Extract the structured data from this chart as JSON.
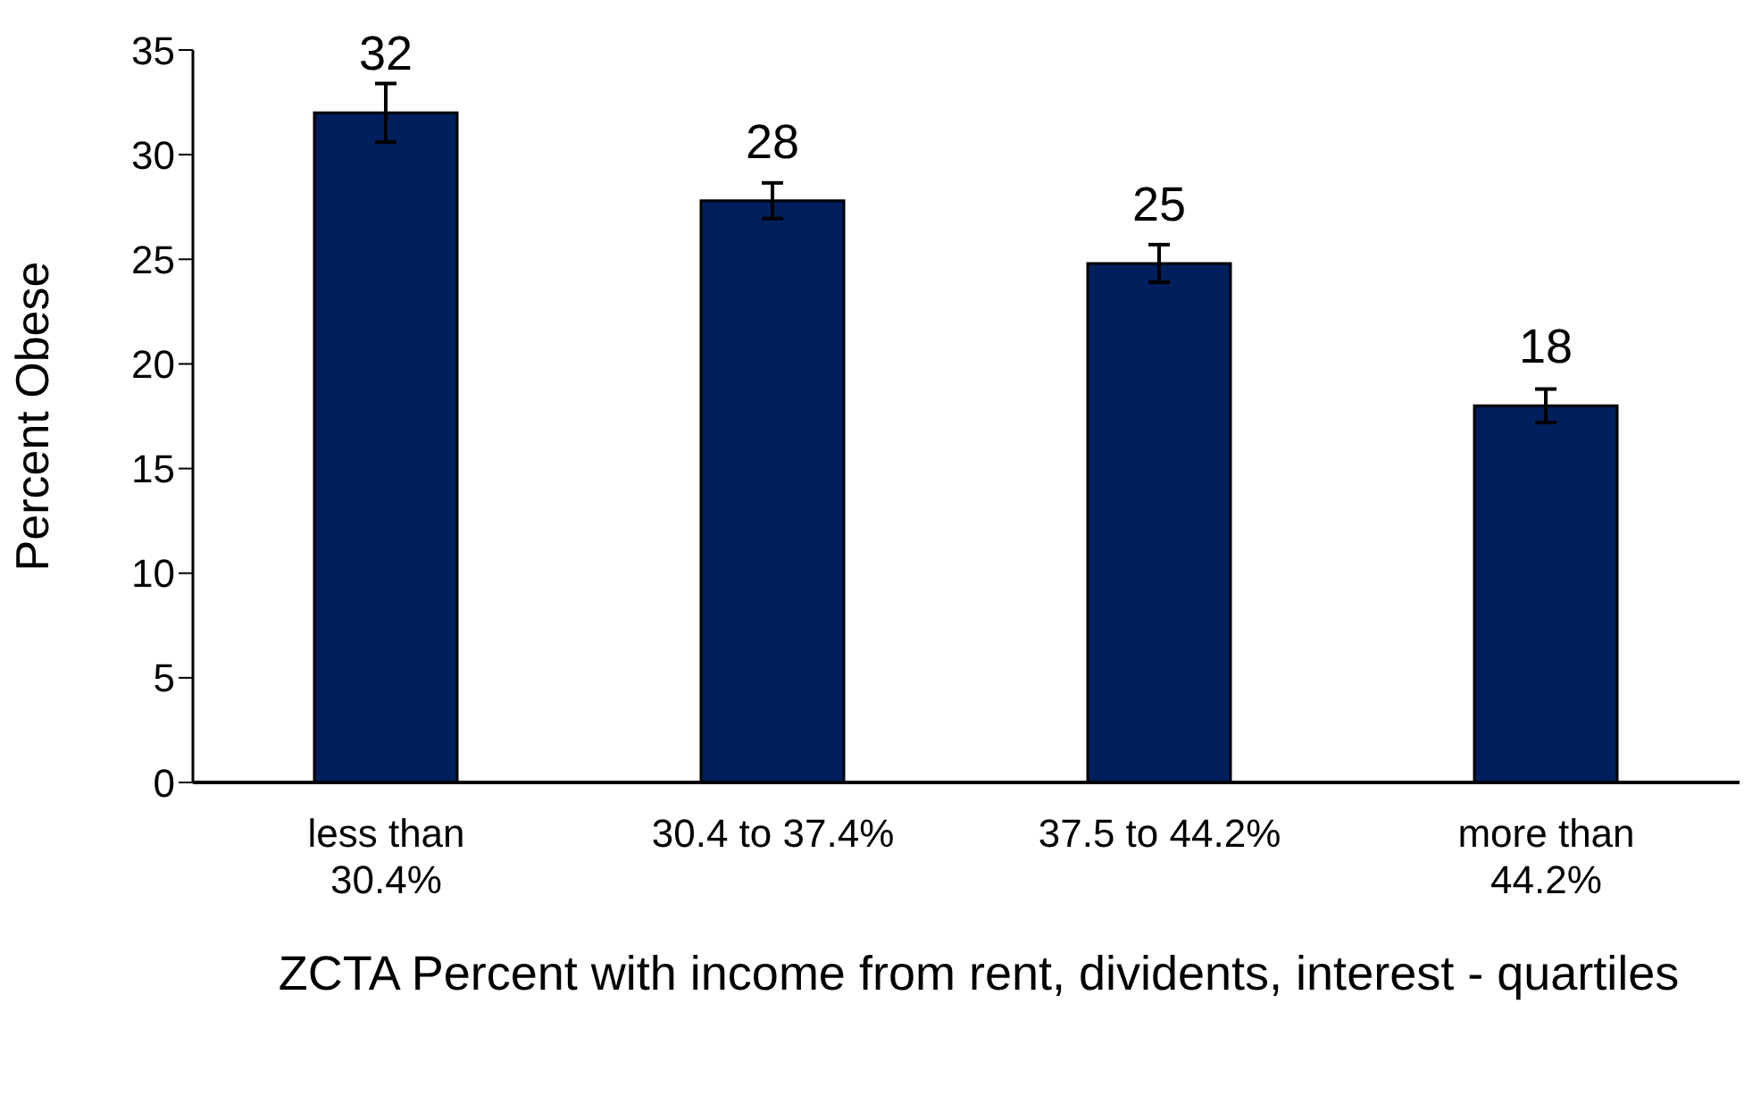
{
  "chart_data": {
    "type": "bar",
    "xlabel": "ZCTA Percent with income from rent, dividents, interest - quartiles",
    "ylabel": "Percent Obese",
    "categories": [
      "less than 30.4%",
      "30.4 to 37.4%",
      "37.5 to 44.2%",
      "more than 44.2%"
    ],
    "values": [
      32.0,
      27.8,
      24.8,
      18.0
    ],
    "errors": [
      1.4,
      0.85,
      0.9,
      0.8
    ],
    "value_labels": [
      "32",
      "28",
      "25",
      "18"
    ],
    "color": "#001f5c",
    "ylim": [
      0,
      35
    ],
    "yticks": [
      0,
      5,
      10,
      15,
      20,
      25,
      30,
      35
    ],
    "grid": false,
    "legend": false
  }
}
